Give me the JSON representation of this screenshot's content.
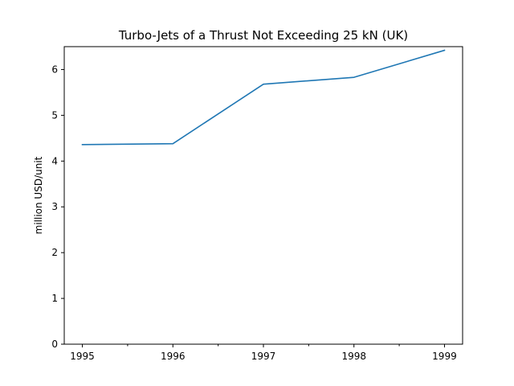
{
  "chart_data": {
    "type": "line",
    "title": "Turbo-Jets of a Thrust Not Exceeding 25 kN (UK)",
    "xlabel": "",
    "ylabel": "million USD/unit",
    "x": [
      1995,
      1996,
      1997,
      1998,
      1999
    ],
    "x_ticks": [
      1995,
      1996,
      1997,
      1998,
      1999
    ],
    "x_tick_labels": [
      "1995",
      "1996",
      "1997",
      "1998",
      "1999"
    ],
    "x_minor_ticks": [
      1995.5,
      1996.5,
      1997.5,
      1998.5
    ],
    "xlim": [
      1994.8,
      1999.2
    ],
    "ylim": [
      0,
      6.5
    ],
    "y_ticks": [
      0,
      1,
      2,
      3,
      4,
      5,
      6
    ],
    "y_tick_labels": [
      "0",
      "1",
      "2",
      "3",
      "4",
      "5",
      "6"
    ],
    "grid": false,
    "series": [
      {
        "values": [
          4.36,
          4.38,
          5.68,
          5.83,
          6.42
        ],
        "color": "#1f77b4"
      }
    ]
  }
}
